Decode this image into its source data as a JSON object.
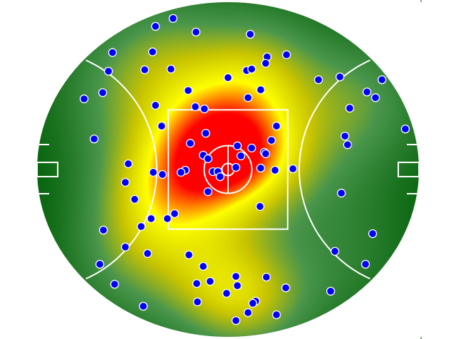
{
  "chart_data": {
    "type": "scatter",
    "background": "heatmap",
    "x_range": [
      -80,
      80
    ],
    "y_range": [
      -70,
      70
    ],
    "grid": false,
    "legend": "none",
    "colors": {
      "point_fill": "#0000ff",
      "point_stroke": "#ffffff",
      "field_lines": "#ffffff",
      "heat_low": "#0a6610",
      "heat_lowmid": "#4a964c",
      "heat_mid": "#c8c400",
      "heat_high_mid": "#ffff00",
      "heat_high": "#ff0000"
    },
    "points": [
      [
        -30.4,
        60.0
      ],
      [
        -23.0,
        63.3
      ],
      [
        -13.4,
        57.6
      ],
      [
        -48.4,
        49.0
      ],
      [
        -31.6,
        49.3
      ],
      [
        -50.1,
        41.2
      ],
      [
        -34.9,
        41.8
      ],
      [
        -23.9,
        42.1
      ],
      [
        0.0,
        38.5
      ],
      [
        -16.7,
        33.1
      ],
      [
        -60.3,
        29.6
      ],
      [
        -52.5,
        32.2
      ],
      [
        -30.4,
        26.9
      ],
      [
        -13.7,
        26.3
      ],
      [
        -9.9,
        25.4
      ],
      [
        -27.8,
        18.2
      ],
      [
        -9.3,
        15.2
      ],
      [
        -56.1,
        12.8
      ],
      [
        -15.8,
        11.0
      ],
      [
        -10.4,
        6.0
      ],
      [
        -8.4,
        4.5
      ],
      [
        -41.8,
        2.4
      ],
      [
        9.3,
        56.7
      ],
      [
        16.4,
        47.2
      ],
      [
        15.8,
        44.5
      ],
      [
        24.5,
        48.1
      ],
      [
        7.8,
        41.5
      ],
      [
        9.9,
        42.1
      ],
      [
        13.7,
        33.4
      ],
      [
        8.4,
        30.1
      ],
      [
        37.9,
        37.6
      ],
      [
        46.9,
        38.8
      ],
      [
        64.5,
        37.6
      ],
      [
        58.2,
        32.5
      ],
      [
        61.8,
        30.1
      ],
      [
        51.0,
        25.7
      ],
      [
        74.3,
        17.0
      ],
      [
        49.0,
        14.0
      ],
      [
        50.1,
        10.4
      ],
      [
        20.3,
        18.2
      ],
      [
        18.2,
        12.2
      ],
      [
        9.9,
        9.0
      ],
      [
        3.9,
        9.9
      ],
      [
        5.4,
        5.7
      ],
      [
        15.2,
        7.2
      ],
      [
        15.8,
        6.6
      ],
      [
        -17.9,
        -0.3
      ],
      [
        -19.7,
        -1.2
      ],
      [
        -6.3,
        -0.9
      ],
      [
        -4.2,
        -0.9
      ],
      [
        -3.3,
        -3.0
      ],
      [
        3.3,
        0.9
      ],
      [
        13.7,
        0.6
      ],
      [
        19.7,
        -0.3
      ],
      [
        27.2,
        0.3
      ],
      [
        -8.4,
        -9.3
      ],
      [
        -31.3,
        -1.2
      ],
      [
        -27.5,
        -2.1
      ],
      [
        -43.0,
        -5.4
      ],
      [
        -39.1,
        -12.5
      ],
      [
        -32.2,
        -20.6
      ],
      [
        -25.4,
        -20.6
      ],
      [
        -22.4,
        -18.5
      ],
      [
        -36.4,
        -23.9
      ],
      [
        -52.2,
        -25.4
      ],
      [
        -43.0,
        -32.5
      ],
      [
        -33.7,
        -35.2
      ],
      [
        -53.7,
        -39.7
      ],
      [
        -16.4,
        -35.8
      ],
      [
        -10.4,
        -40.6
      ],
      [
        -13.1,
        -47.8
      ],
      [
        -7.5,
        -46.9
      ],
      [
        -47.5,
        -48.1
      ],
      [
        -35.5,
        -57.3
      ],
      [
        -12.8,
        -55.5
      ],
      [
        -0.6,
        -51.9
      ],
      [
        13.4,
        -15.5
      ],
      [
        47.5,
        -9.9
      ],
      [
        60.6,
        -26.9
      ],
      [
        44.8,
        -34.3
      ],
      [
        57.6,
        -39.7
      ],
      [
        3.3,
        -44.8
      ],
      [
        3.9,
        -48.7
      ],
      [
        16.1,
        -45.1
      ],
      [
        24.2,
        -49.6
      ],
      [
        43.0,
        -51.0
      ],
      [
        11.6,
        -55.2
      ],
      [
        10.4,
        -56.1
      ],
      [
        8.4,
        -60.0
      ],
      [
        20.3,
        -60.9
      ],
      [
        3.3,
        -63.3
      ]
    ]
  }
}
